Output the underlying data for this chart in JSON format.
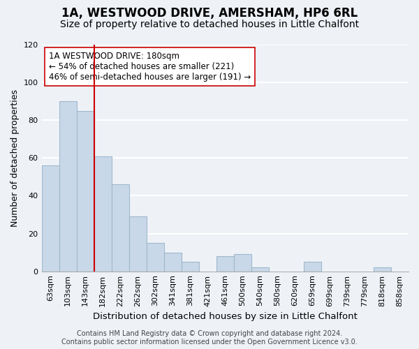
{
  "title": "1A, WESTWOOD DRIVE, AMERSHAM, HP6 6RL",
  "subtitle": "Size of property relative to detached houses in Little Chalfont",
  "xlabel": "Distribution of detached houses by size in Little Chalfont",
  "ylabel": "Number of detached properties",
  "bin_labels": [
    "63sqm",
    "103sqm",
    "143sqm",
    "182sqm",
    "222sqm",
    "262sqm",
    "302sqm",
    "341sqm",
    "381sqm",
    "421sqm",
    "461sqm",
    "500sqm",
    "540sqm",
    "580sqm",
    "620sqm",
    "659sqm",
    "699sqm",
    "739sqm",
    "779sqm",
    "818sqm",
    "858sqm"
  ],
  "bar_values": [
    56,
    90,
    85,
    61,
    46,
    29,
    15,
    10,
    5,
    0,
    8,
    9,
    2,
    0,
    0,
    5,
    0,
    0,
    0,
    2,
    0
  ],
  "bar_color": "#c8d8e8",
  "bar_edge_color": "#a0b8cc",
  "property_line_idx": 3,
  "property_line_color": "#cc0000",
  "ylim": [
    0,
    120
  ],
  "yticks": [
    0,
    20,
    40,
    60,
    80,
    100,
    120
  ],
  "annotation_title": "1A WESTWOOD DRIVE: 180sqm",
  "annotation_line1": "← 54% of detached houses are smaller (221)",
  "annotation_line2": "46% of semi-detached houses are larger (191) →",
  "annotation_box_color": "#ffffff",
  "annotation_box_edge": "#cc0000",
  "footer1": "Contains HM Land Registry data © Crown copyright and database right 2024.",
  "footer2": "Contains public sector information licensed under the Open Government Licence v3.0.",
  "background_color": "#eef2f7",
  "grid_color": "#ffffff",
  "title_fontsize": 12,
  "subtitle_fontsize": 10,
  "xlabel_fontsize": 9.5,
  "ylabel_fontsize": 9,
  "tick_fontsize": 8,
  "footer_fontsize": 7,
  "annotation_fontsize": 8.5
}
